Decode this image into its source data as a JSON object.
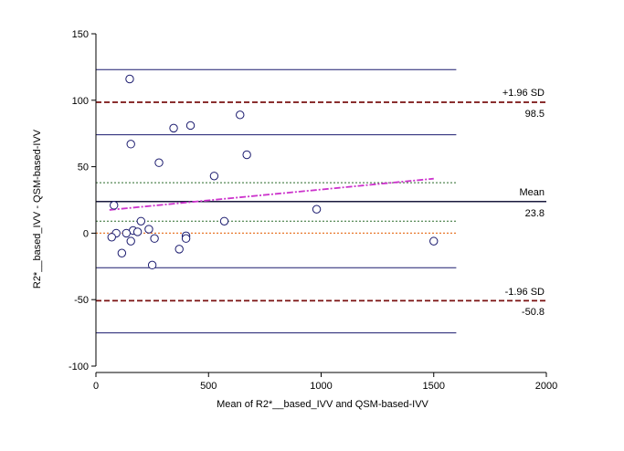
{
  "chart_data": {
    "type": "scatter",
    "title": "",
    "xlabel": "Mean of R2*__based_IVV and QSM-based-IVV",
    "ylabel": "R2*__based_IVV - QSM-based-IVV",
    "xlim": [
      0,
      2000
    ],
    "ylim": [
      -100,
      150
    ],
    "x_ticks": [
      0,
      500,
      1000,
      1500,
      2000
    ],
    "y_ticks": [
      -100,
      -50,
      0,
      50,
      100,
      150
    ],
    "mean": 23.8,
    "upper_loa": 98.5,
    "lower_loa": -50.8,
    "mean_label": "Mean",
    "mean_value_label": "23.8",
    "upper_label": "+1.96 SD",
    "upper_value_label": "98.5",
    "lower_label": "-1.96 SD",
    "lower_value_label": "-50.8",
    "line_x_range": [
      0,
      1600
    ],
    "upper_ci": [
      74,
      123
    ],
    "lower_ci": [
      -26,
      -75
    ],
    "mean_ci": [
      9,
      38
    ],
    "regression_line": {
      "x1": 60,
      "y1": 17.5,
      "x2": 1500,
      "y2": 41
    },
    "points": [
      {
        "x": 150,
        "y": 116
      },
      {
        "x": 640,
        "y": 89
      },
      {
        "x": 420,
        "y": 81
      },
      {
        "x": 345,
        "y": 79
      },
      {
        "x": 155,
        "y": 67
      },
      {
        "x": 670,
        "y": 59
      },
      {
        "x": 280,
        "y": 53
      },
      {
        "x": 525,
        "y": 43
      },
      {
        "x": 80,
        "y": 21
      },
      {
        "x": 980,
        "y": 18
      },
      {
        "x": 200,
        "y": 9
      },
      {
        "x": 570,
        "y": 9
      },
      {
        "x": 235,
        "y": 3
      },
      {
        "x": 165,
        "y": 2
      },
      {
        "x": 185,
        "y": 1
      },
      {
        "x": 90,
        "y": 0
      },
      {
        "x": 135,
        "y": 0
      },
      {
        "x": 400,
        "y": -2
      },
      {
        "x": 70,
        "y": -3
      },
      {
        "x": 400,
        "y": -4
      },
      {
        "x": 260,
        "y": -4
      },
      {
        "x": 155,
        "y": -6
      },
      {
        "x": 1500,
        "y": -6
      },
      {
        "x": 370,
        "y": -12
      },
      {
        "x": 115,
        "y": -15
      },
      {
        "x": 250,
        "y": -24
      }
    ]
  },
  "colors": {
    "axis": "#000000",
    "ci_line": "#1a1a6e",
    "loa_line": "#7a1010",
    "mean_line": "#1a1a3e",
    "zero_line": "#e8782c",
    "mean_ci_line": "#2a6a2a",
    "regression": "#cc33cc",
    "point_stroke": "#1a1a6e"
  }
}
